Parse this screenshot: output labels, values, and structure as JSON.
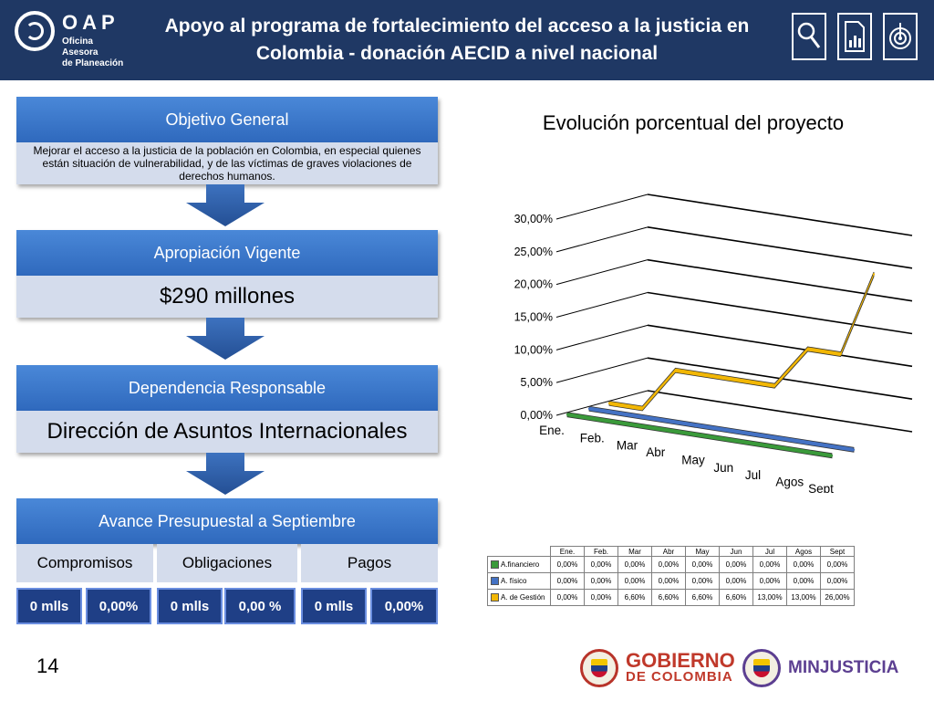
{
  "header": {
    "logo_title": "OAP",
    "logo_subtitle": "Oficina Asesora\nde Planeación",
    "title": "Apoyo al programa de fortalecimiento del acceso a la justicia en Colombia - donación AECID a nivel nacional",
    "icons": [
      "search-icon",
      "document-chart-icon",
      "target-icon"
    ]
  },
  "objetivo": {
    "label": "Objetivo General",
    "text": "Mejorar el acceso a la justicia de la población en Colombia, en especial quienes están situación de vulnerabilidad, y de las víctimas de graves violaciones de derechos humanos."
  },
  "apropiacion": {
    "label": "Apropiación Vigente",
    "value": "$290 millones"
  },
  "dependencia": {
    "label": "Dependencia Responsable",
    "value": "Dirección de Asuntos Internacionales"
  },
  "avance": {
    "label": "Avance Presupuestal a Septiembre",
    "columns": [
      {
        "label": "Compromisos",
        "amount": "0 mlls",
        "percent": "0,00%"
      },
      {
        "label": "Obligaciones",
        "amount": "0 mlls",
        "percent": "0,00 %"
      },
      {
        "label": "Pagos",
        "amount": "0 mlls",
        "percent": "0,00%"
      }
    ]
  },
  "chart_data": {
    "type": "line",
    "title": "Evolución porcentual del proyecto",
    "categories": [
      "Ene.",
      "Feb.",
      "Mar",
      "Abr",
      "May",
      "Jun",
      "Jul",
      "Agos",
      "Sept"
    ],
    "y_ticks": [
      "0,00%",
      "5,00%",
      "10,00%",
      "15,00%",
      "20,00%",
      "25,00%",
      "30,00%"
    ],
    "ylim": [
      0,
      30
    ],
    "three_d": true,
    "series": [
      {
        "name": "A.financiero",
        "color": "#3a9a3a",
        "values": [
          0,
          0,
          0,
          0,
          0,
          0,
          0,
          0,
          0
        ],
        "labels": [
          "0,00%",
          "0,00%",
          "0,00%",
          "0,00%",
          "0,00%",
          "0,00%",
          "0,00%",
          "0,00%",
          "0,00%"
        ]
      },
      {
        "name": "A. físico",
        "color": "#4472c4",
        "values": [
          0,
          0,
          0,
          0,
          0,
          0,
          0,
          0,
          0
        ],
        "labels": [
          "0,00%",
          "0,00%",
          "0,00%",
          "0,00%",
          "0,00%",
          "0,00%",
          "0,00%",
          "0,00%",
          "0,00%"
        ]
      },
      {
        "name": "A. de Gestión",
        "color": "#f2b705",
        "values": [
          0,
          0,
          6.6,
          6.6,
          6.6,
          6.6,
          13,
          13,
          26
        ],
        "labels": [
          "0,00%",
          "0,00%",
          "6,60%",
          "6,60%",
          "6,60%",
          "6,60%",
          "13,00%",
          "13,00%",
          "26,00%"
        ]
      }
    ]
  },
  "footer": {
    "page_number": "14",
    "gobierno_line1": "GOBIERNO",
    "gobierno_line2": "DE COLOMBIA",
    "minjusticia": "MINJUSTICIA"
  },
  "colors": {
    "header_bg": "#1f3864",
    "box_header": "#3a78cc",
    "box_body": "#d4dcec",
    "value_cell": "#1f3f86"
  }
}
